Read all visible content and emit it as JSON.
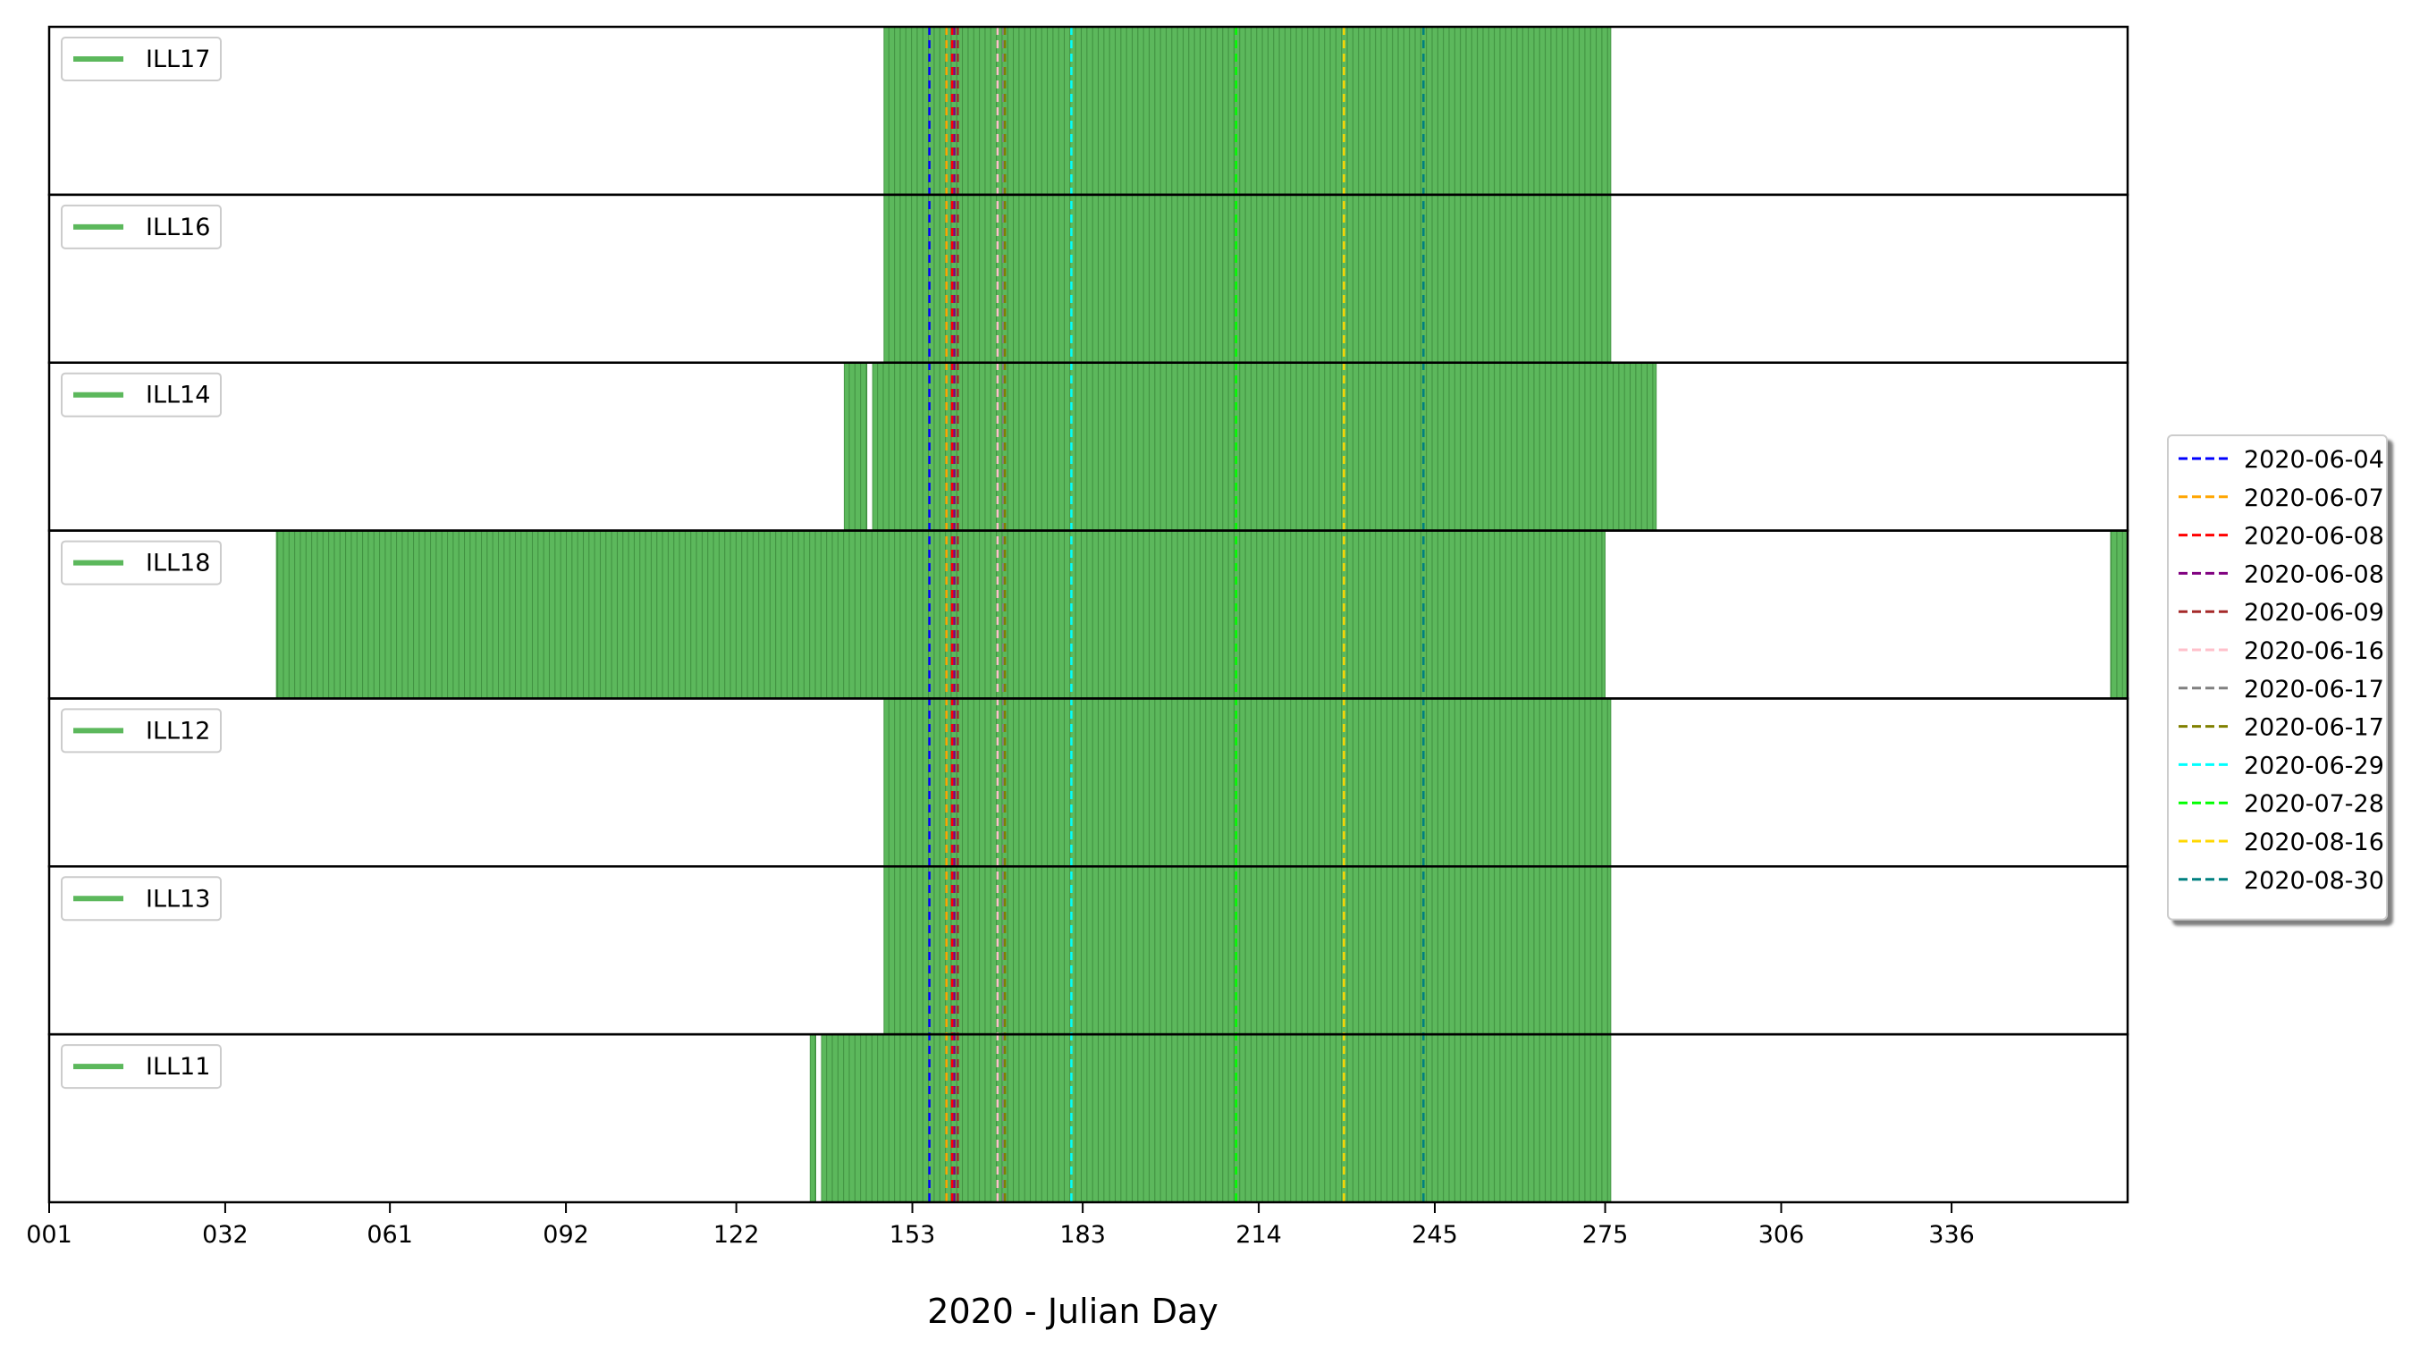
{
  "chart_data": {
    "type": "bar",
    "xlabel": "2020 - Julian Day",
    "xlim": [
      1,
      367
    ],
    "xticks": [
      "001",
      "032",
      "061",
      "092",
      "122",
      "153",
      "183",
      "214",
      "245",
      "275",
      "306",
      "336"
    ],
    "panels": [
      {
        "name": "ILL17",
        "days_ranges": [
          [
            148,
            276
          ]
        ]
      },
      {
        "name": "ILL16",
        "days_ranges": [
          [
            148,
            276
          ]
        ]
      },
      {
        "name": "ILL14",
        "days_ranges": [
          [
            141,
            145
          ],
          [
            146,
            284
          ]
        ]
      },
      {
        "name": "ILL18",
        "days_ranges": [
          [
            41,
            275
          ],
          [
            364,
            367
          ]
        ]
      },
      {
        "name": "ILL12",
        "days_ranges": [
          [
            148,
            276
          ]
        ]
      },
      {
        "name": "ILL13",
        "days_ranges": [
          [
            148,
            276
          ]
        ]
      },
      {
        "name": "ILL11",
        "days_ranges": [
          [
            135,
            136
          ],
          [
            137,
            276
          ]
        ]
      }
    ],
    "series_color": "#4daf4a",
    "events": [
      {
        "label": "2020-06-04",
        "day": 156,
        "color": "#0000ff"
      },
      {
        "label": "2020-06-07",
        "day": 159,
        "color": "#ffa500"
      },
      {
        "label": "2020-06-08",
        "day": 160,
        "color": "#ff0000"
      },
      {
        "label": "2020-06-08",
        "day": 160.4,
        "color": "#800080"
      },
      {
        "label": "2020-06-09",
        "day": 161,
        "color": "#a52a2a"
      },
      {
        "label": "2020-06-16",
        "day": 168,
        "color": "#ffc0cb"
      },
      {
        "label": "2020-06-17",
        "day": 169,
        "color": "#808080"
      },
      {
        "label": "2020-06-17",
        "day": 169.3,
        "color": "#808000"
      },
      {
        "label": "2020-06-29",
        "day": 181,
        "color": "#00ffff"
      },
      {
        "label": "2020-07-28",
        "day": 210,
        "color": "#00ff00"
      },
      {
        "label": "2020-08-16",
        "day": 229,
        "color": "#ffd700"
      },
      {
        "label": "2020-08-30",
        "day": 243,
        "color": "#008080"
      }
    ]
  }
}
